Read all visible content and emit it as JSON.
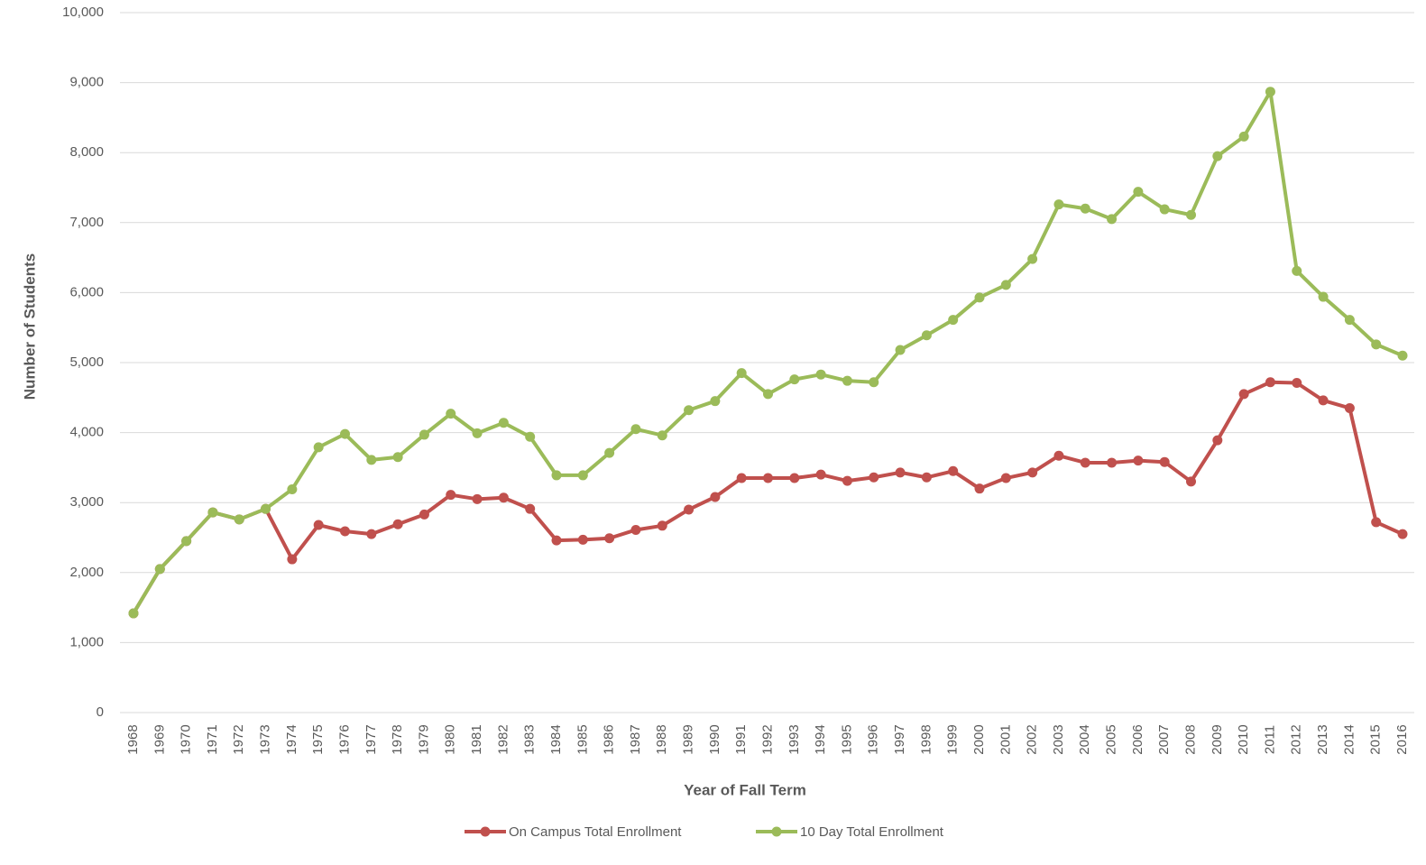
{
  "chart_data": {
    "type": "line",
    "x_label": "Year of Fall Term",
    "y_label": "Number of Students",
    "categories": [
      "1968",
      "1969",
      "1970",
      "1971",
      "1972",
      "1973",
      "1974",
      "1975",
      "1976",
      "1977",
      "1978",
      "1979",
      "1980",
      "1981",
      "1982",
      "1983",
      "1984",
      "1985",
      "1986",
      "1987",
      "1988",
      "1989",
      "1990",
      "1991",
      "1992",
      "1993",
      "1994",
      "1995",
      "1996",
      "1997",
      "1998",
      "1999",
      "2000",
      "2001",
      "2002",
      "2003",
      "2004",
      "2005",
      "2006",
      "2007",
      "2008",
      "2009",
      "2010",
      "2011",
      "2012",
      "2013",
      "2014",
      "2015",
      "2016"
    ],
    "series": [
      {
        "name": "On Campus Total Enrollment",
        "color": "#c0504d",
        "values": [
          1418,
          2050,
          2450,
          2860,
          2760,
          2910,
          2190,
          2680,
          2590,
          2550,
          2690,
          2830,
          3110,
          3050,
          3070,
          2910,
          2460,
          2470,
          2490,
          2610,
          2670,
          2900,
          3080,
          3350,
          3350,
          3350,
          3400,
          3310,
          3360,
          3430,
          3360,
          3450,
          3200,
          3350,
          3430,
          3670,
          3570,
          3570,
          3600,
          3580,
          3300,
          3890,
          4550,
          4720,
          4710,
          4460,
          4350,
          2720,
          2550
        ]
      },
      {
        "name": "10 Day Total Enrollment",
        "color": "#9bbb59",
        "values": [
          1418,
          2050,
          2450,
          2860,
          2760,
          2910,
          3190,
          3790,
          3980,
          3610,
          3650,
          3970,
          4270,
          3990,
          4140,
          3940,
          3390,
          3390,
          3710,
          4050,
          3960,
          4320,
          4450,
          4850,
          4550,
          4760,
          4830,
          4740,
          4720,
          5180,
          5390,
          5610,
          5930,
          6110,
          6480,
          7260,
          7200,
          7050,
          7440,
          7190,
          7110,
          7950,
          8230,
          8870,
          6310,
          5940,
          5610,
          5260,
          5100
        ]
      }
    ],
    "ylim": [
      0,
      10000
    ],
    "yticks": [
      0,
      {
        "value": 1000,
        "label": "1,000"
      },
      {
        "value": 2000,
        "label": "2,000"
      },
      {
        "value": 3000,
        "label": "3,000"
      },
      {
        "value": 4000,
        "label": "4,000"
      },
      {
        "value": 5000,
        "label": "5,000"
      },
      {
        "value": 6000,
        "label": "6,000"
      },
      {
        "value": 7000,
        "label": "7,000"
      },
      {
        "value": 8000,
        "label": "8,000"
      },
      {
        "value": 9000,
        "label": "9,000"
      },
      {
        "value": 10000,
        "label": "10,000"
      }
    ],
    "grid": true,
    "legend": "bottom"
  }
}
